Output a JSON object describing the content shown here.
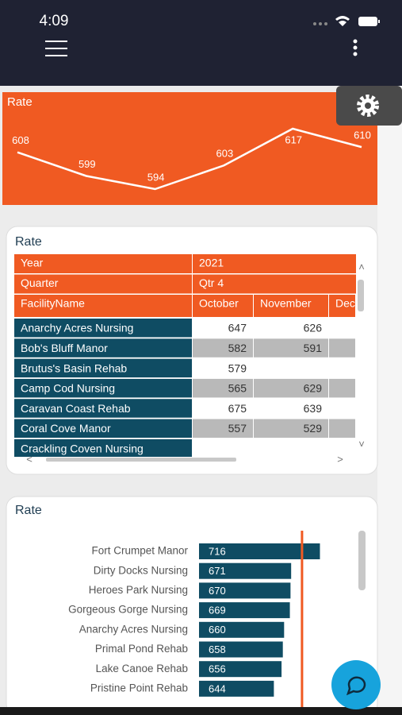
{
  "status_bar": {
    "time": "4:09"
  },
  "chart_data": [
    {
      "type": "line",
      "title": "Rate",
      "categories": [
        null,
        null,
        null,
        null,
        null,
        null
      ],
      "values": [
        608,
        599,
        594,
        603,
        617,
        610
      ],
      "color": "#ffffff",
      "background": "#f05a22"
    },
    {
      "type": "bar",
      "orientation": "horizontal",
      "title": "Rate",
      "categories": [
        "Fort Crumpet Manor",
        "Dirty Docks Nursing",
        "Heroes Park Nursing",
        "Gorgeous Gorge Nursing",
        "Anarchy Acres Nursing",
        "Primal Pond Rehab",
        "Lake Canoe Rehab",
        "Pristine Point Rehab"
      ],
      "values": [
        716,
        671,
        670,
        669,
        660,
        658,
        656,
        644
      ],
      "color": "#0f4c63",
      "xlim": [
        527,
        760
      ],
      "reference_line": {
        "value": 688,
        "color": "#f05a22"
      }
    }
  ],
  "table": {
    "title": "Rate",
    "filters": [
      [
        "Year",
        "2021"
      ],
      [
        "Quarter",
        "Qtr 4"
      ]
    ],
    "columns": [
      "FacilityName",
      "October",
      "November",
      "Dec"
    ],
    "rows": [
      [
        "Anarchy Acres Nursing",
        647,
        626,
        null
      ],
      [
        "Bob's Bluff Manor",
        582,
        591,
        null
      ],
      [
        "Brutus's Basin Rehab",
        579,
        null,
        null
      ],
      [
        "Camp Cod Nursing",
        565,
        629,
        null
      ],
      [
        "Caravan Coast Rehab",
        675,
        639,
        null
      ],
      [
        "Coral Cove Manor",
        557,
        529,
        null
      ],
      [
        "Crackling Coven Nursing",
        null,
        null,
        null
      ]
    ]
  }
}
